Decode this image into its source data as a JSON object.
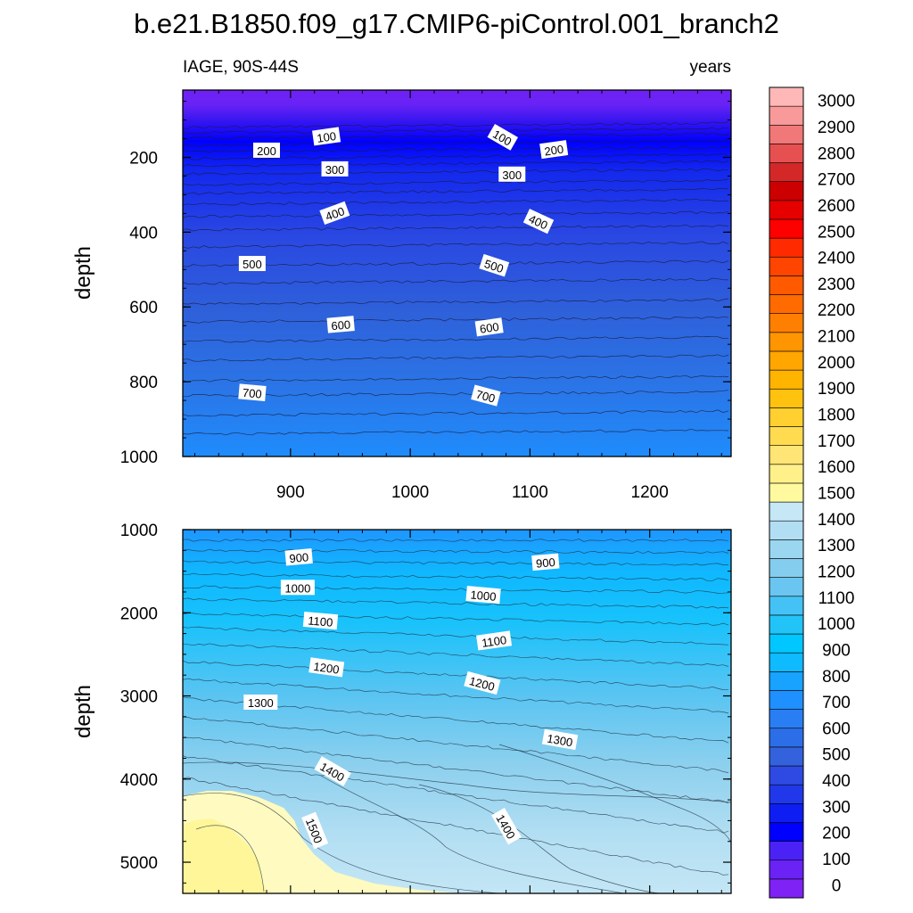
{
  "chart_data": {
    "type": "contour",
    "title": "b.e21.B1850.f09_g17.CMIP6-piControl.001_branch2",
    "variable_label": "IAGE, 90S-44S",
    "units_label": "years",
    "x": {
      "range": [
        810,
        1268
      ],
      "ticks": [
        900,
        1000,
        1100,
        1200
      ],
      "tick_labels": [
        "900",
        "1000",
        "1100",
        "1200"
      ]
    },
    "panels": [
      {
        "name": "upper",
        "ylabel": "depth",
        "ylim": [
          20,
          1000
        ],
        "yticks": [
          200,
          400,
          600,
          800,
          1000
        ],
        "ytick_labels": [
          "200",
          "400",
          "600",
          "800",
          "1000"
        ],
        "contour_levels": [
          100,
          200,
          300,
          400,
          500,
          600,
          700
        ],
        "contour_labels": [
          {
            "text": "100",
            "x": 930,
            "y": 145,
            "angle": -8
          },
          {
            "text": "100",
            "x": 1077,
            "y": 147,
            "angle": 30
          },
          {
            "text": "200",
            "x": 880,
            "y": 182,
            "angle": 0
          },
          {
            "text": "200",
            "x": 1120,
            "y": 180,
            "angle": -8
          },
          {
            "text": "300",
            "x": 937,
            "y": 232,
            "angle": 0
          },
          {
            "text": "300",
            "x": 1085,
            "y": 246,
            "angle": 0
          },
          {
            "text": "400",
            "x": 937,
            "y": 350,
            "angle": -20
          },
          {
            "text": "400",
            "x": 1107,
            "y": 372,
            "angle": 25
          },
          {
            "text": "500",
            "x": 868,
            "y": 485,
            "angle": 0
          },
          {
            "text": "500",
            "x": 1070,
            "y": 490,
            "angle": 18
          },
          {
            "text": "600",
            "x": 942,
            "y": 648,
            "angle": -5
          },
          {
            "text": "600",
            "x": 1066,
            "y": 655,
            "angle": -8
          },
          {
            "text": "700",
            "x": 868,
            "y": 830,
            "angle": 5
          },
          {
            "text": "700",
            "x": 1063,
            "y": 838,
            "angle": 15
          }
        ]
      },
      {
        "name": "lower",
        "ylabel": "depth",
        "ylim": [
          1000,
          5375
        ],
        "yticks": [
          1000,
          2000,
          3000,
          4000,
          5000
        ],
        "ytick_labels": [
          "1000",
          "2000",
          "3000",
          "4000",
          "5000"
        ],
        "contour_levels": [
          900,
          1000,
          1100,
          1200,
          1300,
          1400,
          1500
        ],
        "contour_labels": [
          {
            "text": "900",
            "x": 907,
            "y": 1335,
            "angle": -5
          },
          {
            "text": "900",
            "x": 1113,
            "y": 1395,
            "angle": -5
          },
          {
            "text": "1000",
            "x": 906,
            "y": 1700,
            "angle": 0
          },
          {
            "text": "1000",
            "x": 1061,
            "y": 1790,
            "angle": 5
          },
          {
            "text": "1100",
            "x": 925,
            "y": 2100,
            "angle": 5
          },
          {
            "text": "1100",
            "x": 1070,
            "y": 2340,
            "angle": -8
          },
          {
            "text": "1200",
            "x": 930,
            "y": 2660,
            "angle": 8
          },
          {
            "text": "1200",
            "x": 1060,
            "y": 2850,
            "angle": 15
          },
          {
            "text": "1300",
            "x": 875,
            "y": 3080,
            "angle": 0
          },
          {
            "text": "1300",
            "x": 1125,
            "y": 3530,
            "angle": 10
          },
          {
            "text": "1400",
            "x": 935,
            "y": 3910,
            "angle": 30
          },
          {
            "text": "1400",
            "x": 1080,
            "y": 4570,
            "angle": 60
          },
          {
            "text": "1500",
            "x": 920,
            "y": 4620,
            "angle": 68
          }
        ]
      }
    ],
    "colorbar": {
      "labels": [
        "0",
        "100",
        "200",
        "300",
        "400",
        "500",
        "600",
        "700",
        "800",
        "900",
        "1000",
        "1100",
        "1200",
        "1300",
        "1400",
        "1500",
        "1600",
        "1700",
        "1800",
        "1900",
        "2000",
        "2100",
        "2200",
        "2300",
        "2400",
        "2500",
        "2600",
        "2700",
        "2800",
        "2900",
        "3000"
      ],
      "colors": [
        "#7f22f5",
        "#6a22f5",
        "#4b22f5",
        "#0000ff",
        "#0e1ef2",
        "#2038ea",
        "#2f4ae2",
        "#3462dc",
        "#2c6ee8",
        "#2a7ef3",
        "#1e90ff",
        "#17a3ff",
        "#0fbaff",
        "#00c7ff",
        "#22c4f8",
        "#45c2f5",
        "#6ac6f0",
        "#85cdee",
        "#9bd6f0",
        "#b1def3",
        "#c6e7f6",
        "#fffaa0",
        "#fff08a",
        "#ffe575",
        "#ffdb50",
        "#ffd030",
        "#ffc20e",
        "#ffb400",
        "#ffa600",
        "#ff9500",
        "#ff8000",
        "#ff6b00",
        "#ff5a00",
        "#ff4500",
        "#ff2a00",
        "#ff0000",
        "#e60000",
        "#cc0000",
        "#d42828",
        "#e65050",
        "#f07878",
        "#f89a9a",
        "#ffb8b8"
      ]
    }
  }
}
